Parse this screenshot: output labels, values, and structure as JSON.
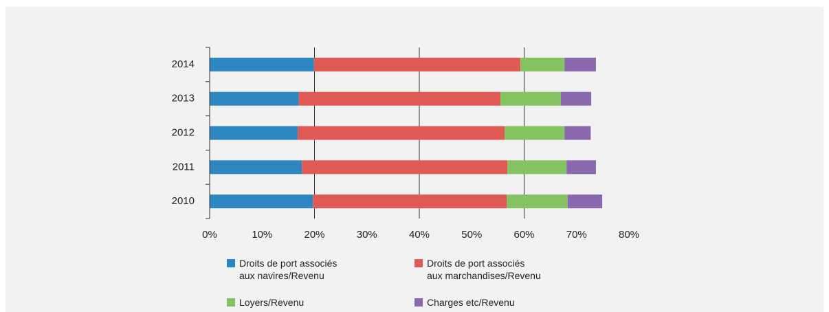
{
  "chart_data": {
    "type": "stacked-barh",
    "categories": [
      "2014",
      "2013",
      "2012",
      "2011",
      "2010"
    ],
    "series": [
      {
        "name": "Droits de port associés\naux navires/Revenu",
        "color": "#2e86c1",
        "values": [
          19.9,
          17.0,
          16.8,
          17.6,
          19.7
        ]
      },
      {
        "name": "Droits de port associés\naux marchandises/Revenu",
        "color": "#e05a55",
        "values": [
          39.4,
          38.5,
          39.5,
          39.2,
          37.0
        ]
      },
      {
        "name": "Loyers/Revenu",
        "color": "#84c262",
        "values": [
          8.4,
          11.5,
          11.4,
          11.3,
          11.6
        ]
      },
      {
        "name": "Charges etc/Revenu",
        "color": "#8a68ad",
        "values": [
          6.0,
          5.8,
          5.0,
          5.6,
          6.6
        ]
      }
    ],
    "xlim": [
      0,
      80
    ],
    "xticks": [
      {
        "value": 0,
        "label": "0%"
      },
      {
        "value": 10,
        "label": "10%"
      },
      {
        "value": 20,
        "label": "20%"
      },
      {
        "value": 30,
        "label": "30%"
      },
      {
        "value": 40,
        "label": "40%"
      },
      {
        "value": 50,
        "label": "50%"
      },
      {
        "value": 60,
        "label": "60%"
      },
      {
        "value": 70,
        "label": "70%"
      },
      {
        "value": 80,
        "label": "80%"
      }
    ],
    "grid": true
  }
}
